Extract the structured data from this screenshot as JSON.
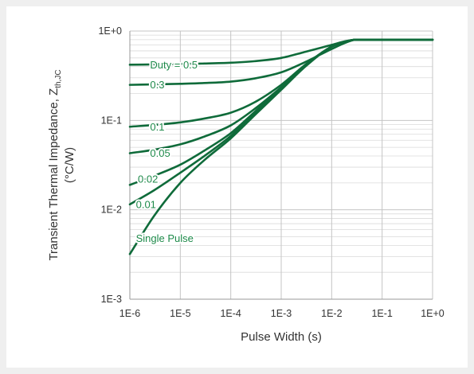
{
  "chart_data": {
    "type": "line",
    "xlabel": "Pulse Width (s)",
    "ylabel_main": "Transient Thermal Impedance, Z",
    "ylabel_sub": "th,JC",
    "ylabel_unit": "(°C/W)",
    "xscale": "log",
    "yscale": "log",
    "xlim": [
      1e-06,
      1
    ],
    "ylim": [
      0.001,
      1
    ],
    "xticks": [
      "1E-6",
      "1E-5",
      "1E-4",
      "1E-3",
      "1E-2",
      "1E-1",
      "1E+0"
    ],
    "yticks": [
      "1E+0",
      "1E-1",
      "1E-2",
      "1E-3"
    ],
    "grid": true,
    "line_color": "#0f6b3a",
    "series": [
      {
        "name": "Duty = 0.5",
        "x": [
          1e-06,
          3e-06,
          1e-05,
          3e-05,
          0.0001,
          0.0003,
          0.001,
          0.003,
          0.01,
          0.02,
          0.03,
          0.1,
          1
        ],
        "y": [
          0.42,
          0.423,
          0.428,
          0.433,
          0.442,
          0.46,
          0.5,
          0.585,
          0.7,
          0.775,
          0.8,
          0.8,
          0.8
        ]
      },
      {
        "name": "0.3",
        "x": [
          1e-06,
          3e-06,
          1e-05,
          3e-05,
          0.0001,
          0.0003,
          0.001,
          0.003,
          0.01,
          0.02,
          0.03,
          0.1,
          1
        ],
        "y": [
          0.25,
          0.253,
          0.257,
          0.262,
          0.272,
          0.295,
          0.345,
          0.45,
          0.63,
          0.75,
          0.8,
          0.8,
          0.8
        ]
      },
      {
        "name": "0.1",
        "x": [
          1e-06,
          3e-06,
          1e-05,
          3e-05,
          0.0001,
          0.0003,
          0.001,
          0.003,
          0.01,
          0.02,
          0.03,
          0.1,
          1
        ],
        "y": [
          0.085,
          0.089,
          0.095,
          0.105,
          0.122,
          0.16,
          0.25,
          0.42,
          0.67,
          0.77,
          0.8,
          0.8,
          0.8
        ]
      },
      {
        "name": "0.05",
        "x": [
          1e-06,
          3e-06,
          1e-05,
          3e-05,
          0.0001,
          0.0003,
          0.001,
          0.003,
          0.01,
          0.02,
          0.03,
          0.1,
          1
        ],
        "y": [
          0.043,
          0.047,
          0.054,
          0.066,
          0.088,
          0.135,
          0.235,
          0.41,
          0.67,
          0.77,
          0.8,
          0.8,
          0.8
        ]
      },
      {
        "name": "0.02",
        "x": [
          1e-06,
          3e-06,
          1e-05,
          3e-05,
          0.0001,
          0.0003,
          0.001,
          0.003,
          0.01,
          0.02,
          0.03,
          0.1,
          1
        ],
        "y": [
          0.019,
          0.024,
          0.032,
          0.046,
          0.072,
          0.125,
          0.23,
          0.41,
          0.67,
          0.77,
          0.8,
          0.8,
          0.8
        ]
      },
      {
        "name": "0.01",
        "x": [
          1e-06,
          3e-06,
          1e-05,
          3e-05,
          0.0001,
          0.0003,
          0.001,
          0.003,
          0.01,
          0.02,
          0.03,
          0.1,
          1
        ],
        "y": [
          0.0115,
          0.0165,
          0.026,
          0.04,
          0.067,
          0.12,
          0.225,
          0.405,
          0.67,
          0.77,
          0.8,
          0.8,
          0.8
        ]
      },
      {
        "name": "Single Pulse",
        "x": [
          1e-06,
          3e-06,
          1e-05,
          3e-05,
          0.0001,
          0.0003,
          0.001,
          0.003,
          0.01,
          0.02,
          0.03,
          0.1,
          1
        ],
        "y": [
          0.0032,
          0.0085,
          0.02,
          0.036,
          0.063,
          0.115,
          0.22,
          0.4,
          0.67,
          0.77,
          0.8,
          0.8,
          0.8
        ]
      }
    ]
  }
}
